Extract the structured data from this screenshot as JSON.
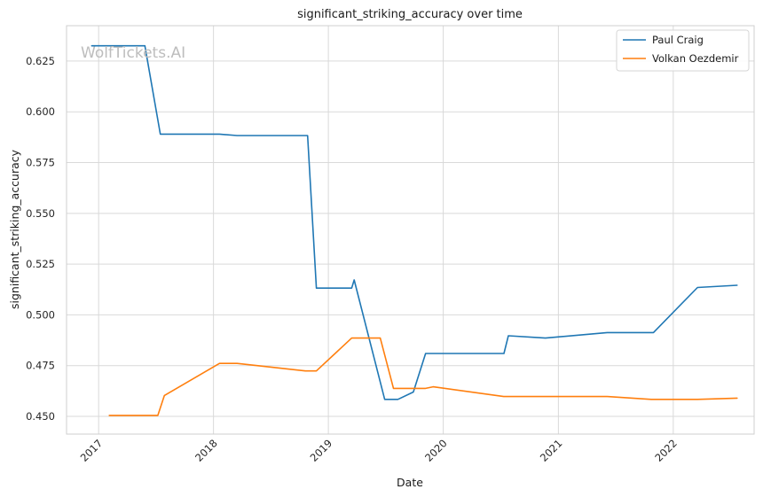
{
  "watermark": "WolfTickets.AI",
  "chart_data": {
    "type": "line",
    "title": "significant_striking_accuracy over time",
    "xlabel": "Date",
    "ylabel": "significant_striking_accuracy",
    "x_ticks": [
      "2017",
      "2018",
      "2019",
      "2020",
      "2021",
      "2022"
    ],
    "y_ticks": [
      "0.450",
      "0.475",
      "0.500",
      "0.525",
      "0.550",
      "0.575",
      "0.600",
      "0.625"
    ],
    "xlim": [
      "2016-09-21",
      "2022-09-15"
    ],
    "ylim": [
      0.4413,
      0.6424
    ],
    "grid": true,
    "legend_position": "top-right",
    "series": [
      {
        "name": "Paul Craig",
        "color": "#1f77b4",
        "points": [
          [
            "2016-12-10",
            0.6325
          ],
          [
            "2017-05-28",
            0.6325
          ],
          [
            "2017-07-16",
            0.589
          ],
          [
            "2018-01-20",
            0.589
          ],
          [
            "2018-03-17",
            0.5883
          ],
          [
            "2018-10-27",
            0.5883
          ],
          [
            "2018-11-24",
            0.5132
          ],
          [
            "2019-03-16",
            0.5132
          ],
          [
            "2019-03-24",
            0.5172
          ],
          [
            "2019-06-29",
            0.4584
          ],
          [
            "2019-08-10",
            0.4584
          ],
          [
            "2019-09-28",
            0.462
          ],
          [
            "2019-11-06",
            0.481
          ],
          [
            "2020-07-12",
            0.481
          ],
          [
            "2020-07-26",
            0.4897
          ],
          [
            "2020-11-21",
            0.4886
          ],
          [
            "2021-06-05",
            0.4913
          ],
          [
            "2021-10-30",
            0.4913
          ],
          [
            "2022-03-19",
            0.5135
          ],
          [
            "2022-07-23",
            0.5146
          ]
        ]
      },
      {
        "name": "Volkan Oezdemir",
        "color": "#ff7f0e",
        "points": [
          [
            "2017-02-04",
            0.4505
          ],
          [
            "2017-07-08",
            0.4505
          ],
          [
            "2017-07-29",
            0.4603
          ],
          [
            "2018-01-20",
            0.4761
          ],
          [
            "2018-03-17",
            0.4761
          ],
          [
            "2018-10-20",
            0.4724
          ],
          [
            "2018-11-24",
            0.4724
          ],
          [
            "2019-03-16",
            0.4886
          ],
          [
            "2019-06-15",
            0.4886
          ],
          [
            "2019-07-27",
            0.4638
          ],
          [
            "2019-11-06",
            0.4638
          ],
          [
            "2019-11-30",
            0.4646
          ],
          [
            "2020-07-11",
            0.4598
          ],
          [
            "2021-06-05",
            0.4598
          ],
          [
            "2021-10-23",
            0.4584
          ],
          [
            "2022-03-19",
            0.4584
          ],
          [
            "2022-07-23",
            0.459
          ]
        ]
      }
    ]
  }
}
